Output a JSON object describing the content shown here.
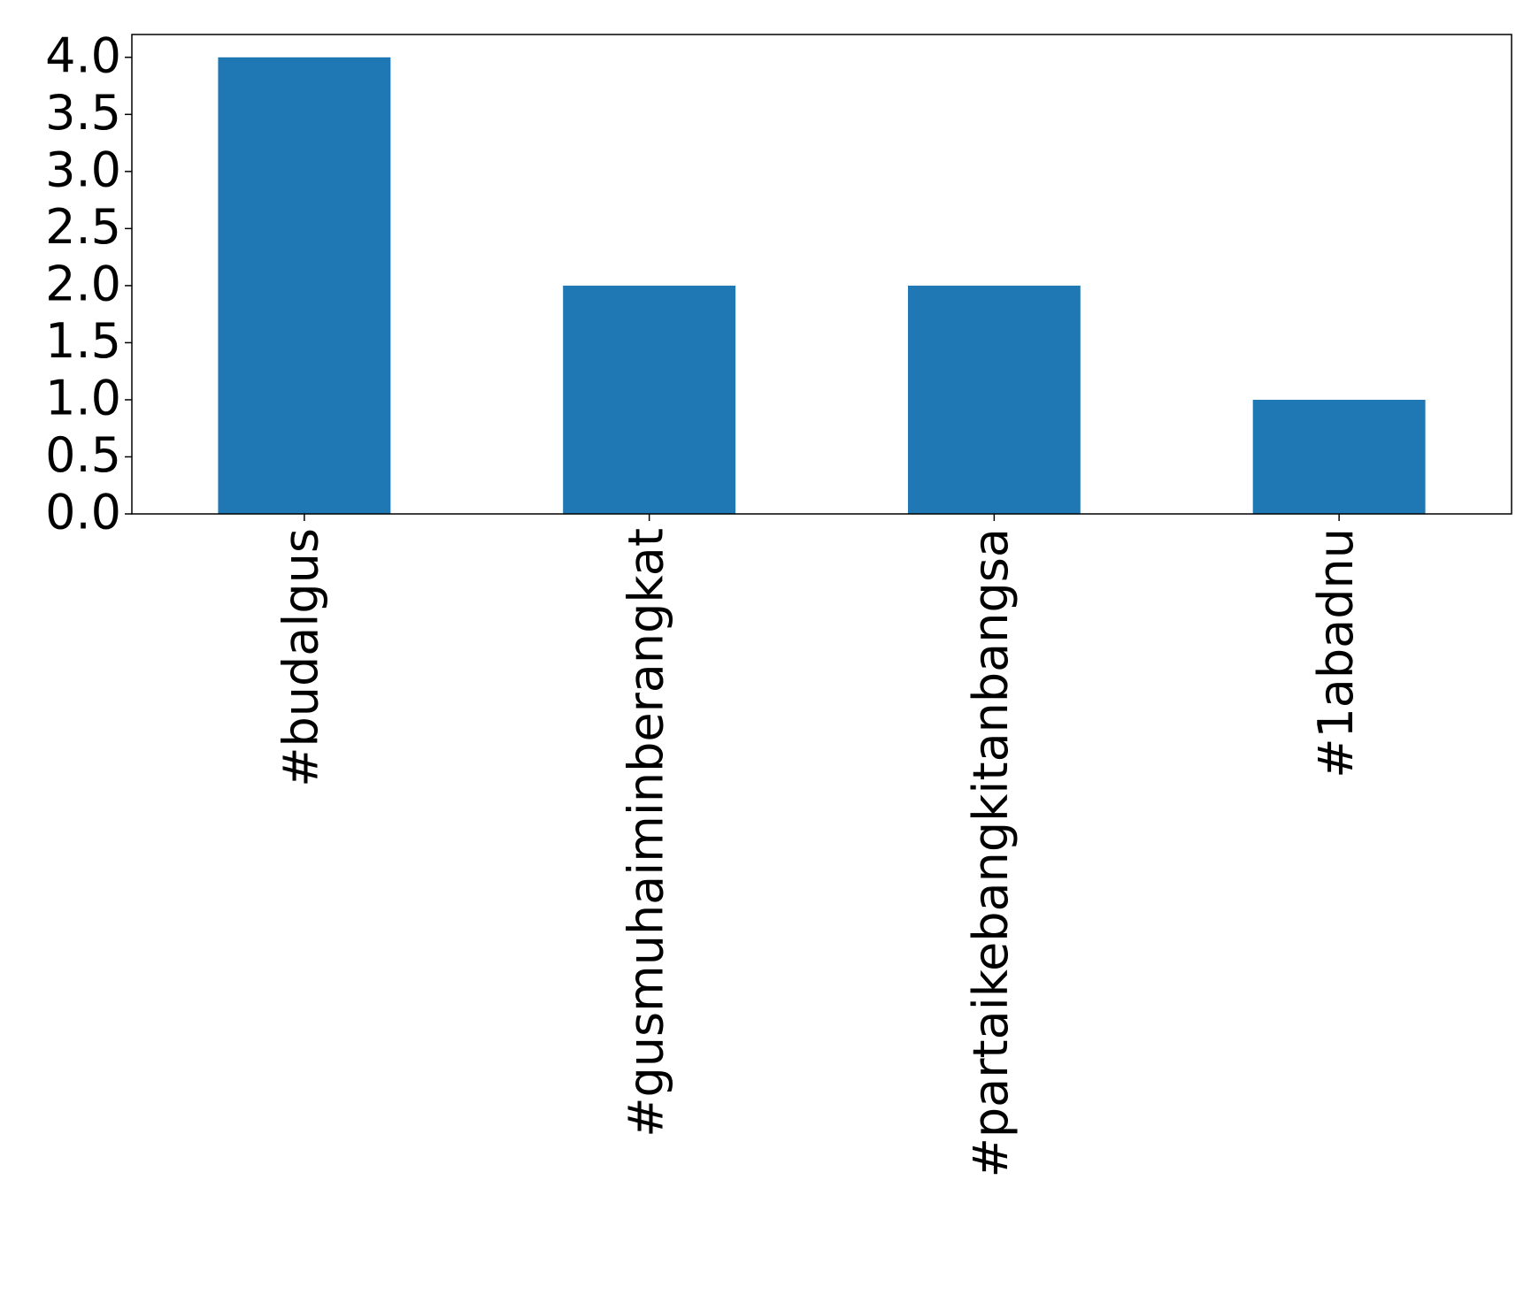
{
  "chart_data": {
    "type": "bar",
    "categories": [
      "#budalgus",
      "#gusmuhaiminberangkat",
      "#partaikebangkitanbangsa",
      "#1abadnu"
    ],
    "values": [
      4,
      2,
      2,
      1
    ],
    "color": "#1f77b4",
    "ylim": [
      0,
      4.2
    ],
    "yticks": [
      {
        "value": 0,
        "label": "0.0"
      },
      0.5,
      {
        "value": 1,
        "label": "1.0"
      },
      1.5,
      {
        "value": 2,
        "label": "2.0"
      },
      2.5,
      {
        "value": 3,
        "label": "3.0"
      },
      3.5,
      {
        "value": 4,
        "label": "4.0"
      }
    ],
    "grid": false
  }
}
